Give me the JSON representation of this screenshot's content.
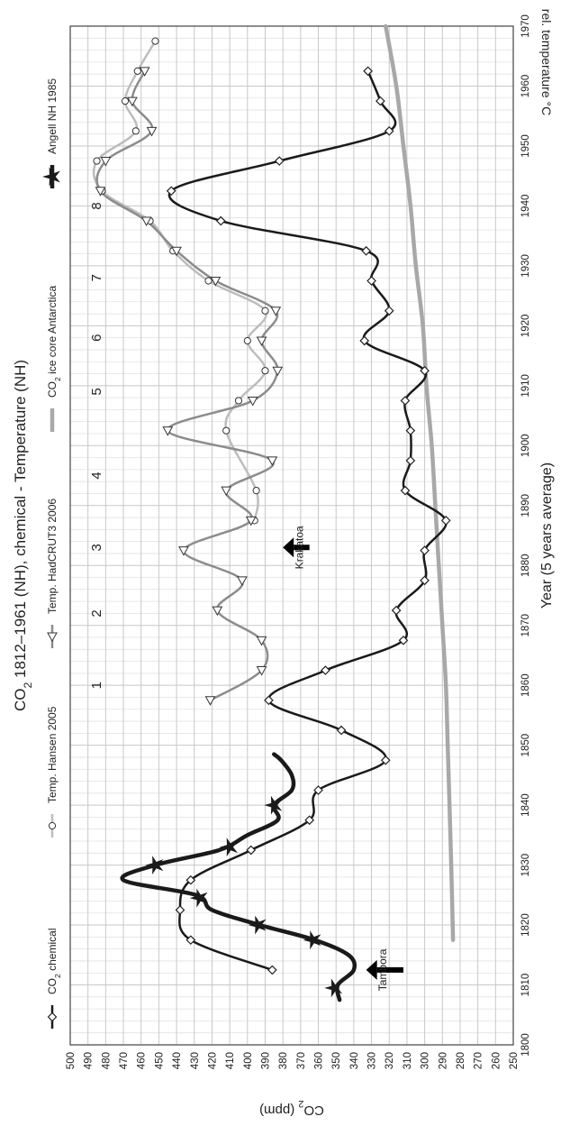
{
  "chart_data": {
    "type": "line",
    "title_parts": [
      "CO",
      "2",
      " 1812–1961 (NH), chemical - Temperature (NH)"
    ],
    "xlabel": "Year (5 years average)",
    "ylabel_parts": [
      "CO",
      "2",
      " (ppm)"
    ],
    "y2label": "rel. temperature °C",
    "xlim": [
      1800,
      1970
    ],
    "ylim": [
      250,
      500
    ],
    "x_ticks": [
      1800,
      1810,
      1820,
      1830,
      1840,
      1850,
      1860,
      1870,
      1880,
      1890,
      1900,
      1910,
      1920,
      1930,
      1940,
      1950,
      1960,
      1970
    ],
    "y_ticks": [
      250,
      260,
      270,
      280,
      290,
      300,
      310,
      320,
      330,
      340,
      350,
      360,
      370,
      380,
      390,
      400,
      410,
      420,
      430,
      440,
      450,
      460,
      470,
      480,
      490,
      500
    ],
    "grid": true,
    "legend_position": "top",
    "legend": [
      {
        "parts": [
          "CO",
          "2",
          " chemical"
        ],
        "color": "#1a1a1a",
        "marker": "diamond"
      },
      {
        "parts": [
          "Temp. Hansen 2005"
        ],
        "color": "#bdbdbd",
        "marker": "circle"
      },
      {
        "parts": [
          "Temp. HadCRUT3 2006"
        ],
        "color": "#8c8c8c",
        "marker": "triangle"
      },
      {
        "parts": [
          "CO",
          "2",
          " ice core Antarctica"
        ],
        "color": "#a8a8a8",
        "marker": "none"
      },
      {
        "parts": [
          "Angell NH 1985"
        ],
        "color": "#1a1a1a",
        "marker": "star"
      }
    ],
    "series": [
      {
        "name": "CO2 chemical",
        "color": "#1a1a1a",
        "width": 2.5,
        "marker": "diamond",
        "x": [
          1812.5,
          1817.5,
          1822.5,
          1827.5,
          1832.5,
          1837.5,
          1842.5,
          1847.5,
          1852.5,
          1857.5,
          1862.5,
          1867.5,
          1872.5,
          1877.5,
          1882.5,
          1887.5,
          1892.5,
          1897.5,
          1902.5,
          1907.5,
          1912.5,
          1917.5,
          1922.5,
          1927.5,
          1932.5,
          1937.5,
          1942.5,
          1947.5,
          1952.5,
          1957.5,
          1962.5
        ],
        "y": [
          386,
          432,
          438,
          432,
          398,
          365,
          360,
          322,
          347,
          388,
          356,
          312,
          316,
          300,
          300,
          288,
          311,
          308,
          308,
          311,
          300,
          334,
          320,
          330,
          333,
          415,
          443,
          382,
          320,
          325,
          332
        ]
      },
      {
        "name": "Temp. Hansen 2005",
        "color": "#bdbdbd",
        "width": 2.5,
        "marker": "circle",
        "x": [
          1887.5,
          1892.5,
          1902.5,
          1907.5,
          1912.5,
          1917.5,
          1922.5,
          1927.5,
          1932.5,
          1937.5,
          1942.5,
          1947.5,
          1952.5,
          1957.5,
          1962.5,
          1967.5
        ],
        "y": [
          396,
          395,
          412,
          405,
          390,
          400,
          390,
          422,
          442,
          455,
          482,
          485,
          463,
          469,
          462,
          452
        ]
      },
      {
        "name": "Temp. HadCRUT3 2006",
        "color": "#8c8c8c",
        "width": 2.5,
        "marker": "triangle",
        "x": [
          1857.5,
          1862.5,
          1867.5,
          1872.5,
          1877.5,
          1882.5,
          1887.5,
          1892.5,
          1897.5,
          1902.5,
          1907.5,
          1912.5,
          1917.5,
          1922.5,
          1927.5,
          1932.5,
          1937.5,
          1942.5,
          1947.5,
          1952.5,
          1957.5,
          1962.5
        ],
        "y": [
          421,
          392,
          392,
          417,
          403,
          436,
          398,
          412,
          386,
          445,
          397,
          383,
          392,
          384,
          418,
          440,
          457,
          483,
          480,
          454,
          465,
          458
        ]
      },
      {
        "name": "CO2 ice core Antarctica",
        "color": "#a8a8a8",
        "width": 4.5,
        "marker": "none",
        "x": [
          1817.5,
          1830,
          1840,
          1850,
          1860,
          1870,
          1880,
          1890,
          1900,
          1910,
          1920,
          1930,
          1940,
          1950,
          1960,
          1970
        ],
        "y": [
          284,
          285,
          286,
          287,
          288,
          290,
          292,
          294,
          296,
          299,
          301,
          305,
          308,
          312,
          316,
          322
        ]
      },
      {
        "name": "Angell NH 1985",
        "color": "#1a1a1a",
        "width": 4.5,
        "marker": "star",
        "x": [
          1807.5,
          1810,
          1812.5,
          1815,
          1817.5,
          1820,
          1822.5,
          1825,
          1827.5,
          1830,
          1832.5,
          1835,
          1837.5,
          1840,
          1842.5,
          1845,
          1847.5,
          1848.5
        ],
        "y": [
          348,
          349,
          340,
          343,
          362,
          393,
          420,
          429,
          470,
          452,
          416,
          400,
          383,
          385,
          375,
          375,
          381,
          385
        ]
      }
    ],
    "star_points": [
      {
        "x": 1809.5,
        "y": 351
      },
      {
        "x": 1817.5,
        "y": 363
      },
      {
        "x": 1820,
        "y": 394
      },
      {
        "x": 1824.5,
        "y": 427
      },
      {
        "x": 1830,
        "y": 452
      },
      {
        "x": 1833,
        "y": 410
      },
      {
        "x": 1840,
        "y": 385
      }
    ],
    "annotations": [
      {
        "text": "Tambora",
        "x": 1812.5,
        "y": 337,
        "arrow_from_y": 312,
        "arrow_to_y": 333
      },
      {
        "text": "Krakatoa",
        "x": 1883,
        "y": 384,
        "arrow_from_y": 365,
        "arrow_to_y": 380
      }
    ],
    "period_labels": [
      {
        "text": "1",
        "x": 1860
      },
      {
        "text": "2",
        "x": 1872
      },
      {
        "text": "3",
        "x": 1883
      },
      {
        "text": "4",
        "x": 1895
      },
      {
        "text": "5",
        "x": 1909
      },
      {
        "text": "6",
        "x": 1918
      },
      {
        "text": "7",
        "x": 1928
      },
      {
        "text": "8",
        "x": 1940
      }
    ]
  }
}
